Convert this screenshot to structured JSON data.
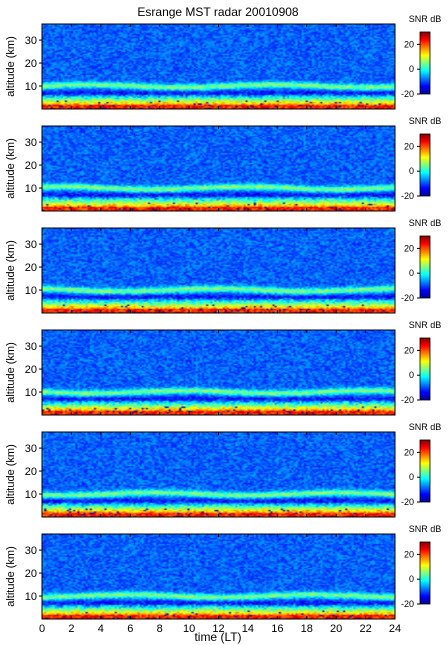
{
  "figure": {
    "title": "Esrange MST radar 20010908",
    "xlabel": "time (LT)",
    "ylabel": "altitude (km)",
    "colorbar_label": "SNR dB"
  },
  "chart_data": {
    "type": "heatmap",
    "panel_count": 6,
    "x": {
      "label": "time (LT)",
      "range": [
        0,
        24
      ],
      "ticks": [
        0,
        2,
        4,
        6,
        8,
        10,
        12,
        14,
        16,
        18,
        20,
        22,
        24
      ]
    },
    "y": {
      "label": "altitude (km)",
      "range": [
        0,
        37
      ],
      "ticks": [
        10,
        20,
        30
      ]
    },
    "colorbar": {
      "label": "SNR dB",
      "range": [
        -20,
        30
      ],
      "ticks": [
        -20,
        0,
        20
      ],
      "colormap": "jet"
    },
    "features": {
      "tropopause_layer_km": 10,
      "strong_echo_below_km": 5
    }
  }
}
